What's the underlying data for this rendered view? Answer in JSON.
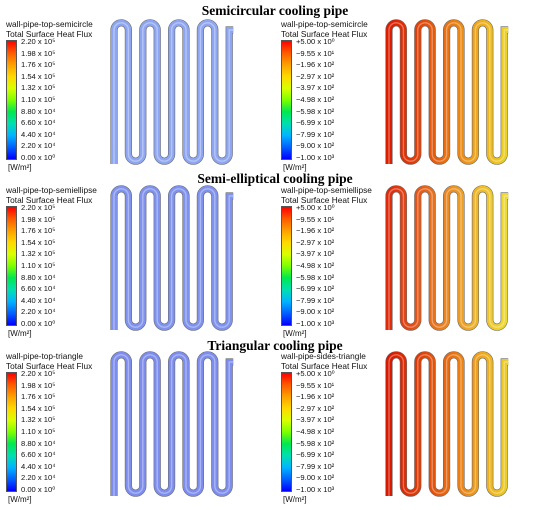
{
  "sections": [
    {
      "title": "Semicircular cooling pipe"
    },
    {
      "title": "Semi-elliptical cooling pipe"
    },
    {
      "title": "Triangular cooling pipe"
    }
  ],
  "legends": {
    "positive": {
      "ticks": [
        "2.20 x 10⁵",
        "1.98 x 10⁵",
        "1.76 x 10⁵",
        "1.54 x 10⁵",
        "1.32 x 10⁵",
        "1.10 x 10⁵",
        "8.80 x 10⁴",
        "6.60 x 10⁴",
        "4.40 x 10⁴",
        "2.20 x 10⁴",
        "0.00 x 10⁰"
      ],
      "colors": [
        "#ff0000",
        "#ff5a00",
        "#ff9f00",
        "#ffd800",
        "#d9ff00",
        "#7dff00",
        "#00e850",
        "#00e0b0",
        "#00b4ff",
        "#0060ff",
        "#0000ff"
      ]
    },
    "negative": {
      "ticks": [
        "+5.00 x 10⁰",
        "−9.55 x 10¹",
        "−1.96 x 10²",
        "−2.97 x 10²",
        "−3.97 x 10²",
        "−4.98 x 10²",
        "−5.98 x 10²",
        "−6.99 x 10²",
        "−7.99 x 10²",
        "−9.00 x 10²",
        "−1.00 x 10³"
      ],
      "colors": [
        "#ff0000",
        "#ff5a00",
        "#ff9f00",
        "#ffd800",
        "#d9ff00",
        "#7dff00",
        "#00e850",
        "#00e0b0",
        "#00b4ff",
        "#0060ff",
        "#0000ff"
      ]
    }
  },
  "panels": [
    {
      "legend": "positive",
      "title1": "wall-pipe-top-semicircle",
      "title2": "Total Surface Heat Flux",
      "unit": "[W/m²]",
      "pipe": "uniform",
      "pipe_color": "#8ea6f2"
    },
    {
      "legend": "negative",
      "title1": "wall-pipe-top-semicircle",
      "title2": "Total Surface Heat Flux",
      "unit": "[W/m²]",
      "pipe": "gradient",
      "pipe_colors": [
        "#dd1c00",
        "#e0420a",
        "#e87410",
        "#eea81a",
        "#ecd422"
      ]
    },
    {
      "legend": "positive",
      "title1": "wall-pipe-top-semiellipse",
      "title2": "Total Surface Heat Flux",
      "unit": "[W/m²]",
      "pipe": "uniform",
      "pipe_color": "#7f92ee"
    },
    {
      "legend": "negative",
      "title1": "wall-pipe-top-semiellipse",
      "title2": "Total Surface Heat Flux",
      "unit": "[W/m²]",
      "pipe": "gradient",
      "pipe_colors": [
        "#de2a0a",
        "#e4581a",
        "#ea8a22",
        "#eeb82a",
        "#eedd30"
      ]
    },
    {
      "legend": "positive",
      "title1": "wall-pipe-top-triangle",
      "title2": "Total Surface Heat Flux",
      "unit": "[W/m²]",
      "pipe": "uniform",
      "pipe_color": "#7d8dee"
    },
    {
      "legend": "negative",
      "title1": "wall-pipe-sides-triangle",
      "title2": "Total Surface Heat Flux",
      "unit": "[W/m²]",
      "pipe": "gradient",
      "pipe_colors": [
        "#d81800",
        "#de3c06",
        "#e86a10",
        "#eea01a",
        "#ecd024"
      ]
    }
  ]
}
